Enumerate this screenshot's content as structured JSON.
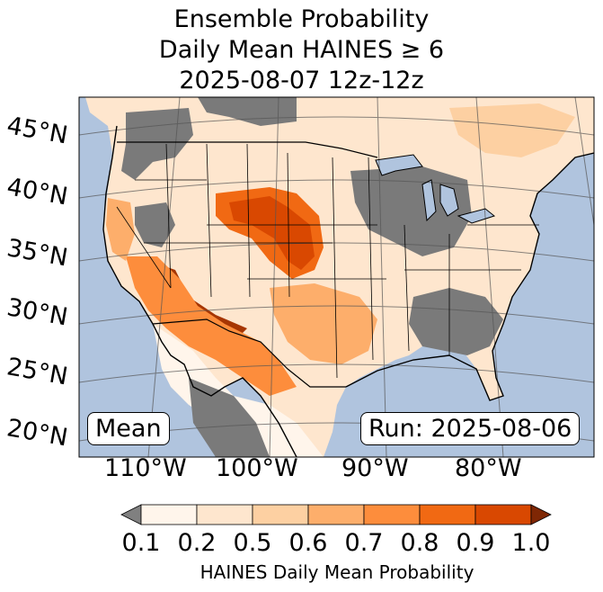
{
  "title": {
    "line1": "Ensemble Probability",
    "line2": "Daily Mean HAINES ≥ 6",
    "line3": "2025-08-07 12z-12z"
  },
  "map": {
    "lat_labels": [
      "45°N",
      "40°N",
      "35°N",
      "30°N",
      "25°N",
      "20°N"
    ],
    "lon_labels": [
      "110°W",
      "100°W",
      "90°W",
      "80°W"
    ],
    "stat_label": "Mean",
    "run_label": "Run: 2025-08-06",
    "colors": {
      "ocean": "#b0c4de",
      "land_missing": "#808080",
      "below": "#7a7a7a"
    }
  },
  "colorbar": {
    "ticks": [
      "0.1",
      "0.2",
      "0.5",
      "0.6",
      "0.7",
      "0.8",
      "0.9",
      "1.0"
    ],
    "colors": [
      "#fff5eb",
      "#fee6ce",
      "#fdd0a2",
      "#fdae6b",
      "#fd8d3c",
      "#f16913",
      "#d94801",
      "#a63603"
    ],
    "under_color": "#808080",
    "over_color": "#7f2704",
    "label": "HAINES Daily Mean Probability"
  }
}
